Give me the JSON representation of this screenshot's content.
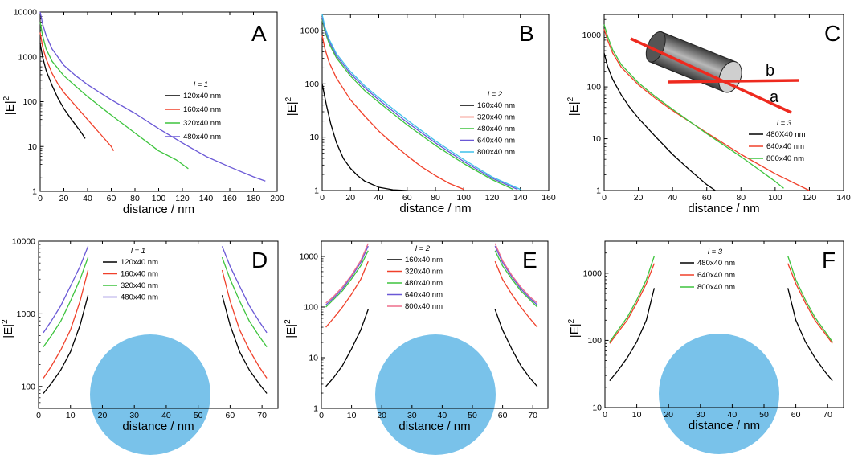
{
  "colors": {
    "black": "#000000",
    "red": "#f0402a",
    "green": "#3ec43e",
    "blue": "#6a58d6",
    "cyan": "#3fc0ea",
    "pink": "#ee6e8c",
    "sphere": "#79c2ea",
    "cylinder_dark": "#3a3a3a",
    "cylinder_light": "#b8b8b8",
    "laser": "#ee2a1f"
  },
  "chart_data": [
    {
      "panel": "A",
      "type": "line",
      "yscale": "log",
      "xlabel": "distance / nm",
      "ylabel": "|E|",
      "ylabel_sup": "2",
      "xlim": [
        0,
        200
      ],
      "ylim": [
        1,
        10000
      ],
      "xticks": [
        0,
        20,
        40,
        60,
        80,
        100,
        120,
        140,
        160,
        180,
        200
      ],
      "yticks": [
        1,
        10,
        100,
        1000,
        10000
      ],
      "legend_title": "l = 1",
      "series": [
        {
          "name": "120x40 nm",
          "color": "black",
          "x": [
            0,
            2,
            5,
            10,
            15,
            20,
            25,
            30,
            35,
            38
          ],
          "y": [
            2000,
            1000,
            500,
            230,
            120,
            70,
            45,
            30,
            20,
            15
          ]
        },
        {
          "name": "160x40 nm",
          "color": "red",
          "x": [
            0,
            2,
            5,
            10,
            15,
            20,
            30,
            40,
            50,
            60,
            62
          ],
          "y": [
            3500,
            1700,
            900,
            430,
            250,
            160,
            80,
            40,
            20,
            10,
            8
          ]
        },
        {
          "name": "320x40 nm",
          "color": "green",
          "x": [
            0,
            2,
            5,
            10,
            20,
            30,
            40,
            60,
            80,
            100,
            115,
            125
          ],
          "y": [
            6000,
            3000,
            1500,
            800,
            380,
            220,
            130,
            50,
            20,
            8,
            5,
            3.2
          ]
        },
        {
          "name": "480x40 nm",
          "color": "blue",
          "x": [
            0,
            2,
            5,
            10,
            20,
            30,
            40,
            60,
            80,
            100,
            120,
            140,
            160,
            180,
            190
          ],
          "y": [
            10000,
            5500,
            3000,
            1500,
            650,
            380,
            240,
            110,
            55,
            25,
            12,
            6,
            3.5,
            2.1,
            1.7
          ]
        }
      ]
    },
    {
      "panel": "B",
      "type": "line",
      "yscale": "log",
      "xlabel": "distance / nm",
      "ylabel": "|E|",
      "ylabel_sup": "2",
      "xlim": [
        0,
        160
      ],
      "ylim": [
        1,
        2000
      ],
      "xticks": [
        0,
        20,
        40,
        60,
        80,
        100,
        120,
        140,
        160
      ],
      "yticks": [
        1,
        10,
        100,
        1000
      ],
      "legend_title": "l = 2",
      "series": [
        {
          "name": "160x40 nm",
          "color": "black",
          "x": [
            0,
            3,
            6,
            10,
            15,
            20,
            25,
            30,
            40,
            50,
            60
          ],
          "y": [
            100,
            40,
            18,
            8,
            4,
            2.6,
            1.9,
            1.5,
            1.15,
            1.03,
            1.0
          ]
        },
        {
          "name": "320x40 nm",
          "color": "red",
          "x": [
            0,
            2,
            5,
            10,
            20,
            30,
            40,
            50,
            60,
            70,
            80,
            90,
            100
          ],
          "y": [
            800,
            450,
            250,
            130,
            50,
            25,
            13,
            7.5,
            4.5,
            2.8,
            1.9,
            1.35,
            1.05
          ]
        },
        {
          "name": "480x40 nm",
          "color": "green",
          "x": [
            0,
            2,
            5,
            10,
            20,
            30,
            40,
            60,
            80,
            100,
            120,
            135
          ],
          "y": [
            1600,
            950,
            560,
            310,
            140,
            75,
            45,
            17,
            7,
            3.2,
            1.6,
            1.05
          ]
        },
        {
          "name": "640x40 nm",
          "color": "blue",
          "x": [
            0,
            2,
            5,
            10,
            20,
            30,
            40,
            60,
            80,
            100,
            120,
            138
          ],
          "y": [
            1800,
            1050,
            620,
            340,
            155,
            85,
            50,
            19,
            7.8,
            3.5,
            1.7,
            1.05
          ]
        },
        {
          "name": "800x40 nm",
          "color": "cyan",
          "x": [
            0,
            2,
            5,
            10,
            20,
            30,
            40,
            60,
            80,
            100,
            120,
            140
          ],
          "y": [
            2000,
            1150,
            680,
            370,
            170,
            92,
            55,
            21,
            8.5,
            3.8,
            1.8,
            1.05
          ]
        }
      ]
    },
    {
      "panel": "C",
      "type": "line",
      "yscale": "log",
      "xlabel": "distance / nm",
      "ylabel": "|E|",
      "ylabel_sup": "2",
      "xlim": [
        0,
        140
      ],
      "ylim": [
        1,
        2500
      ],
      "xticks": [
        0,
        20,
        40,
        60,
        80,
        100,
        120,
        140
      ],
      "yticks": [
        1,
        10,
        100,
        1000
      ],
      "legend_title": "l = 3",
      "inset_labels": [
        "a",
        "b"
      ],
      "series": [
        {
          "name": "480X40 nm",
          "color": "black",
          "x": [
            0,
            2,
            5,
            10,
            15,
            20,
            30,
            40,
            50,
            60,
            65
          ],
          "y": [
            450,
            250,
            140,
            70,
            40,
            25,
            11,
            5,
            2.5,
            1.3,
            1.0
          ]
        },
        {
          "name": "640x40 nm",
          "color": "red",
          "x": [
            0,
            2,
            5,
            10,
            20,
            30,
            40,
            60,
            80,
            100,
            120
          ],
          "y": [
            1300,
            800,
            450,
            240,
            110,
            60,
            35,
            13,
            5,
            2.1,
            1.0
          ]
        },
        {
          "name": "800x40 nm",
          "color": "green",
          "x": [
            0,
            2,
            5,
            10,
            20,
            30,
            40,
            60,
            80,
            100,
            105
          ],
          "y": [
            1600,
            950,
            520,
            270,
            120,
            65,
            37,
            12.5,
            4.5,
            1.5,
            1.1
          ]
        }
      ]
    },
    {
      "panel": "D",
      "type": "line",
      "yscale": "log",
      "xlabel": "distance / nm",
      "ylabel": "|E|",
      "ylabel_sup": "2",
      "xlim": [
        0,
        75
      ],
      "ylim": [
        50,
        10000
      ],
      "xticks": [
        0,
        10,
        20,
        30,
        40,
        50,
        60,
        70
      ],
      "yticks": [
        100,
        1000,
        10000
      ],
      "legend_title": "l = 1",
      "series": [
        {
          "name": "120x40 nm",
          "color": "black",
          "x": [
            1.5,
            4,
            7,
            10,
            13,
            15.5
          ],
          "y": [
            80,
            110,
            170,
            300,
            700,
            1800
          ],
          "x2": [
            57.5,
            60,
            63,
            66,
            69,
            71.5
          ],
          "y2": [
            1800,
            700,
            300,
            170,
            110,
            80
          ]
        },
        {
          "name": "160x40 nm",
          "color": "red",
          "x": [
            1.5,
            4,
            7,
            10,
            13,
            15.5
          ],
          "y": [
            130,
            190,
            320,
            600,
            1500,
            4000
          ],
          "x2": [
            57.5,
            60,
            63,
            66,
            69,
            71.5
          ],
          "y2": [
            4000,
            1500,
            600,
            320,
            190,
            130
          ]
        },
        {
          "name": "320x40 nm",
          "color": "green",
          "x": [
            1.5,
            4,
            7,
            10,
            13,
            15.5
          ],
          "y": [
            350,
            500,
            800,
            1500,
            3000,
            6000
          ],
          "x2": [
            57.5,
            60,
            63,
            66,
            69,
            71.5
          ],
          "y2": [
            6000,
            3000,
            1500,
            800,
            500,
            350
          ]
        },
        {
          "name": "480x40 nm",
          "color": "blue",
          "x": [
            1.5,
            4,
            7,
            10,
            13,
            15.5
          ],
          "y": [
            550,
            800,
            1300,
            2400,
            4500,
            8500
          ],
          "x2": [
            57.5,
            60,
            63,
            66,
            69,
            71.5
          ],
          "y2": [
            8500,
            4500,
            2400,
            1300,
            800,
            550
          ]
        }
      ]
    },
    {
      "panel": "E",
      "type": "line",
      "yscale": "log",
      "xlabel": "distance / nm",
      "ylabel": "|E|",
      "ylabel_sup": "2",
      "xlim": [
        0,
        75
      ],
      "ylim": [
        1,
        2000
      ],
      "xticks": [
        0,
        10,
        20,
        30,
        40,
        50,
        60,
        70
      ],
      "yticks": [
        1,
        10,
        100,
        1000
      ],
      "legend_title": "l = 2",
      "series": [
        {
          "name": "160x40 nm",
          "color": "black",
          "x": [
            1.5,
            4,
            7,
            10,
            13,
            15.5
          ],
          "y": [
            2.7,
            4,
            7,
            15,
            35,
            90
          ],
          "x2": [
            57.5,
            60,
            63,
            66,
            69,
            71.5
          ],
          "y2": [
            90,
            35,
            15,
            7,
            4,
            2.7
          ]
        },
        {
          "name": "320x40 nm",
          "color": "red",
          "x": [
            1.5,
            4,
            7,
            10,
            13,
            15.5
          ],
          "y": [
            40,
            60,
            100,
            180,
            350,
            800
          ],
          "x2": [
            57.5,
            60,
            63,
            66,
            69,
            71.5
          ],
          "y2": [
            800,
            350,
            180,
            100,
            60,
            40
          ]
        },
        {
          "name": "480x40 nm",
          "color": "green",
          "x": [
            1.5,
            4,
            7,
            10,
            13,
            15.5
          ],
          "y": [
            100,
            140,
            210,
            360,
            650,
            1300
          ],
          "x2": [
            57.5,
            60,
            63,
            66,
            69,
            71.5
          ],
          "y2": [
            1300,
            650,
            360,
            210,
            140,
            100
          ]
        },
        {
          "name": "640x40 nm",
          "color": "blue",
          "x": [
            1.5,
            4,
            7,
            10,
            13,
            15.5
          ],
          "y": [
            110,
            150,
            230,
            400,
            750,
            1600
          ],
          "x2": [
            57.5,
            60,
            63,
            66,
            69,
            71.5
          ],
          "y2": [
            1600,
            750,
            400,
            230,
            150,
            110
          ]
        },
        {
          "name": "800x40 nm",
          "color": "pink",
          "x": [
            1.5,
            4,
            7,
            10,
            13,
            15.5
          ],
          "y": [
            120,
            160,
            250,
            430,
            820,
            1800
          ],
          "x2": [
            57.5,
            60,
            63,
            66,
            69,
            71.5
          ],
          "y2": [
            1800,
            820,
            430,
            250,
            160,
            120
          ]
        }
      ]
    },
    {
      "panel": "F",
      "type": "line",
      "yscale": "log",
      "xlabel": "distance / nm",
      "ylabel": "|E|",
      "ylabel_sup": "2",
      "xlim": [
        0,
        75
      ],
      "ylim": [
        10,
        3000
      ],
      "xticks": [
        0,
        10,
        20,
        30,
        40,
        50,
        60,
        70
      ],
      "yticks": [
        10,
        100,
        1000
      ],
      "legend_title": "l = 3",
      "series": [
        {
          "name": "480x40 nm",
          "color": "black",
          "x": [
            1.5,
            4,
            7,
            10,
            13,
            15.5
          ],
          "y": [
            25,
            35,
            55,
            95,
            200,
            600
          ],
          "x2": [
            57.5,
            60,
            63,
            66,
            69,
            71.5
          ],
          "y2": [
            600,
            200,
            95,
            55,
            35,
            25
          ]
        },
        {
          "name": "640x40 nm",
          "color": "red",
          "x": [
            1.5,
            4,
            7,
            10,
            13,
            15.5
          ],
          "y": [
            90,
            130,
            200,
            360,
            700,
            1400
          ],
          "x2": [
            57.5,
            60,
            63,
            66,
            69,
            71.5
          ],
          "y2": [
            1400,
            700,
            360,
            200,
            130,
            90
          ]
        },
        {
          "name": "800x40 nm",
          "color": "green",
          "x": [
            1.5,
            4,
            7,
            10,
            13,
            15.5
          ],
          "y": [
            95,
            140,
            220,
            400,
            800,
            1800
          ],
          "x2": [
            57.5,
            60,
            63,
            66,
            69,
            71.5
          ],
          "y2": [
            1800,
            800,
            400,
            220,
            140,
            95
          ]
        }
      ]
    }
  ]
}
